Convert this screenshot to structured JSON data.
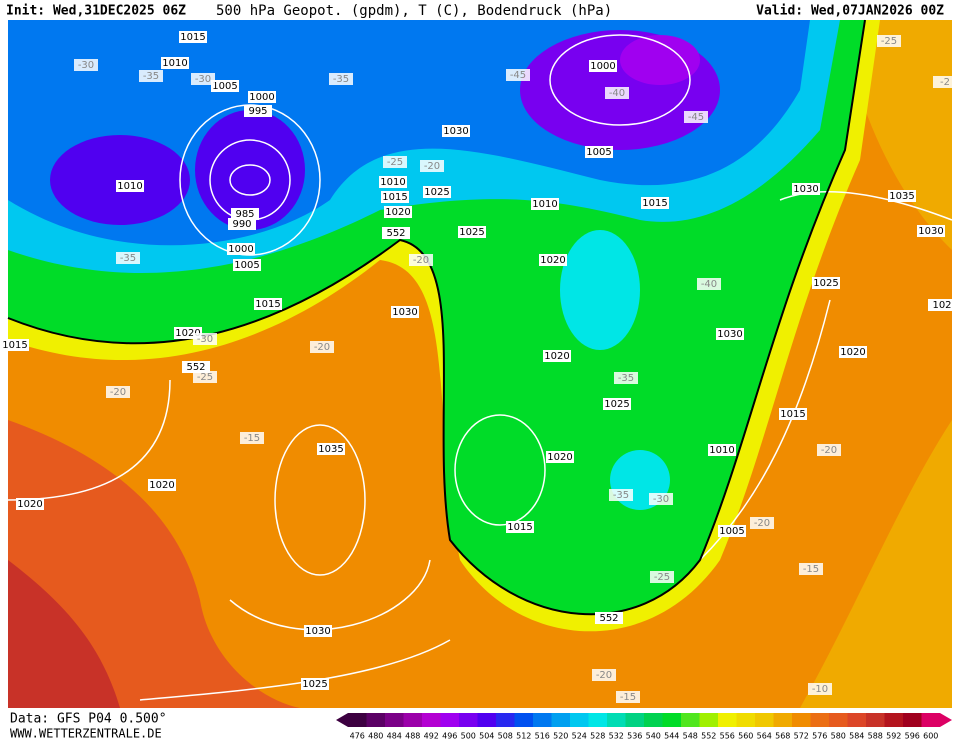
{
  "header": {
    "init": "Init: Wed,31DEC2025 06Z",
    "title": "500 hPa Geopot. (gpdm), T (C), Bodendruck (hPa)",
    "valid": "Valid: Wed,07JAN2026 00Z"
  },
  "footer": {
    "source": "Data: GFS P04 0.500°",
    "website": "WWW.WETTERZENTRALE.DE"
  },
  "isobar_labels": [
    "1015",
    "1010",
    "1005",
    "1000",
    "995",
    "1010",
    "985",
    "990",
    "1000",
    "1005",
    "1015",
    "1020",
    "1015",
    "1000",
    "1030",
    "1005",
    "1010",
    "1015",
    "1010",
    "1015",
    "1025",
    "1020",
    "552",
    "1025",
    "1020",
    "1030",
    "1030",
    "1035",
    "1030",
    "1025",
    "1020",
    "1030",
    "1020",
    "1025",
    "1015",
    "1010",
    "1020",
    "1035",
    "1020",
    "1020",
    "1015",
    "1005",
    "552",
    "552",
    "1030",
    "1025",
    "102"
  ],
  "temperature_labels": [
    "-30",
    "-35",
    "-30",
    "-35",
    "-45",
    "-40",
    "-45",
    "-25",
    "-2",
    "-25",
    "-20",
    "-35",
    "-20",
    "-40",
    "-30",
    "-20",
    "-25",
    "-20",
    "-35",
    "-15",
    "-35",
    "-30",
    "-20",
    "-20",
    "-25",
    "-15",
    "-20",
    "-15",
    "-10"
  ],
  "colorbar": {
    "values": [
      476,
      480,
      484,
      488,
      492,
      496,
      500,
      504,
      508,
      512,
      516,
      520,
      524,
      528,
      532,
      536,
      540,
      544,
      548,
      552,
      556,
      560,
      564,
      568,
      572,
      576,
      580,
      584,
      588,
      592,
      596,
      600
    ],
    "colors": [
      "#3c0040",
      "#5a0064",
      "#7a0087",
      "#9b00aa",
      "#b400d2",
      "#a000f0",
      "#7800f0",
      "#5000f0",
      "#2828f0",
      "#0050f0",
      "#0078f0",
      "#00a0f0",
      "#00c8f0",
      "#00e6e6",
      "#00dcb4",
      "#00d282",
      "#00d250",
      "#00dc28",
      "#50e61e",
      "#a0f000",
      "#f0f000",
      "#f0dc00",
      "#f0c800",
      "#f0aa00",
      "#f08c00",
      "#eb6e14",
      "#e65a1e",
      "#dc4628",
      "#c83228",
      "#b4141e",
      "#a0001e",
      "#dc0064"
    ]
  }
}
